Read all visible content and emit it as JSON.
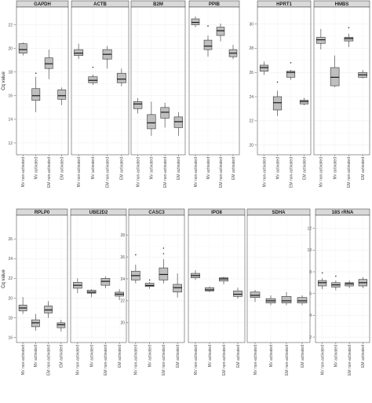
{
  "chart_data": [
    {
      "type": "box",
      "ylabel": "Cq value",
      "ylim": [
        11,
        23.5
      ],
      "yticks": [
        12,
        14,
        16,
        18,
        20,
        22
      ],
      "categories": [
        "NV non-activated",
        "NV activated",
        "EM non-activated",
        "EM activated"
      ],
      "panels": [
        {
          "title": "GAPDH",
          "boxes": [
            {
              "min": 19.4,
              "q1": 19.6,
              "median": 19.9,
              "q3": 20.4,
              "max": 20.5,
              "outliers": []
            },
            {
              "min": 14.6,
              "q1": 15.6,
              "median": 16.0,
              "q3": 16.6,
              "max": 17.6,
              "outliers": [
                17.9
              ]
            },
            {
              "min": 17.4,
              "q1": 18.3,
              "median": 18.7,
              "q3": 19.2,
              "max": 19.9,
              "outliers": []
            },
            {
              "min": 15.2,
              "q1": 15.7,
              "median": 16.0,
              "q3": 16.5,
              "max": 16.7,
              "outliers": []
            }
          ]
        },
        {
          "title": "ACTB",
          "boxes": [
            {
              "min": 19.1,
              "q1": 19.4,
              "median": 19.6,
              "q3": 19.9,
              "max": 20.4,
              "outliers": []
            },
            {
              "min": 16.9,
              "q1": 17.1,
              "median": 17.3,
              "q3": 17.6,
              "max": 17.8,
              "outliers": [
                18.4
              ]
            },
            {
              "min": 18.3,
              "q1": 19.1,
              "median": 19.5,
              "q3": 19.9,
              "max": 20.2,
              "outliers": []
            },
            {
              "min": 16.8,
              "q1": 17.1,
              "median": 17.4,
              "q3": 17.9,
              "max": 18.3,
              "outliers": []
            }
          ]
        },
        {
          "title": "B2M",
          "boxes": [
            {
              "min": 14.5,
              "q1": 14.9,
              "median": 15.3,
              "q3": 15.5,
              "max": 15.8,
              "outliers": []
            },
            {
              "min": 12.6,
              "q1": 13.2,
              "median": 13.7,
              "q3": 14.4,
              "max": 15.5,
              "outliers": []
            },
            {
              "min": 13.3,
              "q1": 14.1,
              "median": 14.6,
              "q3": 15.0,
              "max": 15.4,
              "outliers": []
            },
            {
              "min": 12.6,
              "q1": 13.3,
              "median": 13.8,
              "q3": 14.2,
              "max": 14.6,
              "outliers": []
            }
          ]
        },
        {
          "title": "PPIB",
          "boxes": [
            {
              "min": 21.8,
              "q1": 22.0,
              "median": 22.2,
              "q3": 22.5,
              "max": 22.7,
              "outliers": []
            },
            {
              "min": 19.3,
              "q1": 19.9,
              "median": 20.2,
              "q3": 20.7,
              "max": 21.1,
              "outliers": [
                21.9
              ]
            },
            {
              "min": 20.6,
              "q1": 21.1,
              "median": 21.5,
              "q3": 21.8,
              "max": 22.1,
              "outliers": []
            },
            {
              "min": 19.1,
              "q1": 19.3,
              "median": 19.6,
              "q3": 19.9,
              "max": 20.3,
              "outliers": []
            }
          ]
        }
      ]
    },
    {
      "type": "box",
      "ylim": [
        19.2,
        31.4
      ],
      "yticks": [
        20,
        22,
        24,
        26,
        28,
        30
      ],
      "categories": [
        "NV non-activated",
        "NV activated",
        "EM non-activated",
        "EM activated"
      ],
      "panels": [
        {
          "title": "HPRT1",
          "boxes": [
            {
              "min": 25.8,
              "q1": 26.1,
              "median": 26.4,
              "q3": 26.6,
              "max": 26.9,
              "outliers": []
            },
            {
              "min": 22.4,
              "q1": 22.9,
              "median": 23.5,
              "q3": 24.0,
              "max": 24.5,
              "outliers": [
                25.2
              ]
            },
            {
              "min": 25.4,
              "q1": 25.6,
              "median": 26.0,
              "q3": 26.1,
              "max": 26.2,
              "outliers": [
                26.8
              ]
            },
            {
              "min": 23.3,
              "q1": 23.4,
              "median": 23.6,
              "q3": 23.7,
              "max": 23.9,
              "outliers": []
            }
          ]
        },
        {
          "title": "HMBS",
          "boxes": [
            {
              "min": 27.9,
              "q1": 28.4,
              "median": 28.7,
              "q3": 28.9,
              "max": 29.6,
              "outliers": []
            },
            {
              "min": 24.8,
              "q1": 24.9,
              "median": 25.6,
              "q3": 26.4,
              "max": 27.4,
              "outliers": []
            },
            {
              "min": 28.1,
              "q1": 28.6,
              "median": 28.8,
              "q3": 28.9,
              "max": 29.2,
              "outliers": [
                29.7
              ]
            },
            {
              "min": 25.5,
              "q1": 25.6,
              "median": 25.8,
              "q3": 26.0,
              "max": 26.2,
              "outliers": []
            }
          ]
        }
      ]
    },
    {
      "type": "box",
      "ylabel": "Cq value",
      "ylim": [
        15.5,
        28.4
      ],
      "yticks": [
        16,
        18,
        20,
        22,
        24,
        26
      ],
      "categories": [
        "NV non-activated",
        "NV activated",
        "EM non-activated",
        "EM activated"
      ],
      "panels": [
        {
          "title": "RPLP0",
          "boxes": [
            {
              "min": 18.4,
              "q1": 18.7,
              "median": 19.0,
              "q3": 19.3,
              "max": 20.1,
              "outliers": []
            },
            {
              "min": 16.7,
              "q1": 17.1,
              "median": 17.5,
              "q3": 17.8,
              "max": 18.4,
              "outliers": []
            },
            {
              "min": 18.0,
              "q1": 18.5,
              "median": 18.8,
              "q3": 19.2,
              "max": 19.7,
              "outliers": []
            },
            {
              "min": 16.6,
              "q1": 17.0,
              "median": 17.3,
              "q3": 17.5,
              "max": 17.8,
              "outliers": []
            }
          ]
        },
        {
          "title": "UBE2D2",
          "boxes": [
            {
              "min": 20.5,
              "q1": 21.0,
              "median": 21.3,
              "q3": 21.6,
              "max": 22.0,
              "outliers": []
            },
            {
              "min": 20.1,
              "q1": 20.5,
              "median": 20.6,
              "q3": 20.8,
              "max": 20.9,
              "outliers": []
            },
            {
              "min": 21.0,
              "q1": 21.3,
              "median": 21.7,
              "q3": 22.0,
              "max": 22.2,
              "outliers": []
            },
            {
              "min": 19.8,
              "q1": 20.2,
              "median": 20.4,
              "q3": 20.6,
              "max": 20.9,
              "outliers": []
            }
          ]
        }
      ]
    },
    {
      "type": "box",
      "ylim": [
        18.2,
        29.8
      ],
      "yticks": [
        20,
        22,
        24,
        26,
        28
      ],
      "categories": [
        "NV non-activated",
        "NV activated",
        "EM non-activated",
        "EM activated"
      ],
      "panels": [
        {
          "title": "CASC3",
          "boxes": [
            {
              "min": 23.6,
              "q1": 23.9,
              "median": 24.3,
              "q3": 24.7,
              "max": 25.3,
              "outliers": [
                26.2
              ]
            },
            {
              "min": 23.1,
              "q1": 23.3,
              "median": 23.4,
              "q3": 23.6,
              "max": 23.7,
              "outliers": [
                23.9
              ]
            },
            {
              "min": 23.6,
              "q1": 23.9,
              "median": 24.4,
              "q3": 25.0,
              "max": 25.8,
              "outliers": [
                26.3,
                26.8
              ]
            },
            {
              "min": 22.3,
              "q1": 22.8,
              "median": 23.2,
              "q3": 23.5,
              "max": 24.5,
              "outliers": []
            }
          ]
        },
        {
          "title": "IPO8",
          "boxes": [
            {
              "min": 23.9,
              "q1": 24.1,
              "median": 24.3,
              "q3": 24.5,
              "max": 24.8,
              "outliers": []
            },
            {
              "min": 22.8,
              "q1": 22.9,
              "median": 23.0,
              "q3": 23.2,
              "max": 23.3,
              "outliers": []
            },
            {
              "min": 23.5,
              "q1": 23.8,
              "median": 24.0,
              "q3": 24.1,
              "max": 24.2,
              "outliers": []
            },
            {
              "min": 22.2,
              "q1": 22.4,
              "median": 22.6,
              "q3": 22.9,
              "max": 23.2,
              "outliers": []
            }
          ]
        },
        {
          "title": "SDHA",
          "boxes": [
            {
              "min": 21.9,
              "q1": 22.3,
              "median": 22.5,
              "q3": 22.8,
              "max": 23.0,
              "outliers": []
            },
            {
              "min": 21.6,
              "q1": 21.8,
              "median": 22.0,
              "q3": 22.2,
              "max": 22.5,
              "outliers": []
            },
            {
              "min": 21.6,
              "q1": 21.8,
              "median": 22.0,
              "q3": 22.4,
              "max": 22.8,
              "outliers": []
            },
            {
              "min": 21.6,
              "q1": 21.8,
              "median": 22.0,
              "q3": 22.3,
              "max": 22.5,
              "outliers": []
            }
          ]
        }
      ]
    },
    {
      "type": "box",
      "ylim": [
        1.5,
        13.2
      ],
      "yticks": [
        2,
        4,
        6,
        8,
        10,
        12
      ],
      "categories": [
        "NV non-activated",
        "NV activated",
        "EM non-activated",
        "EM activated"
      ],
      "panels": [
        {
          "title": "18S rRNA",
          "boxes": [
            {
              "min": 6.4,
              "q1": 6.7,
              "median": 7.0,
              "q3": 7.2,
              "max": 7.4,
              "outliers": [
                7.9
              ]
            },
            {
              "min": 6.3,
              "q1": 6.6,
              "median": 6.8,
              "q3": 7.0,
              "max": 7.2,
              "outliers": [
                7.6
              ]
            },
            {
              "min": 6.5,
              "q1": 6.7,
              "median": 6.9,
              "q3": 7.0,
              "max": 7.2,
              "outliers": []
            },
            {
              "min": 6.5,
              "q1": 6.7,
              "median": 7.0,
              "q3": 7.3,
              "max": 7.5,
              "outliers": []
            }
          ]
        }
      ]
    }
  ]
}
